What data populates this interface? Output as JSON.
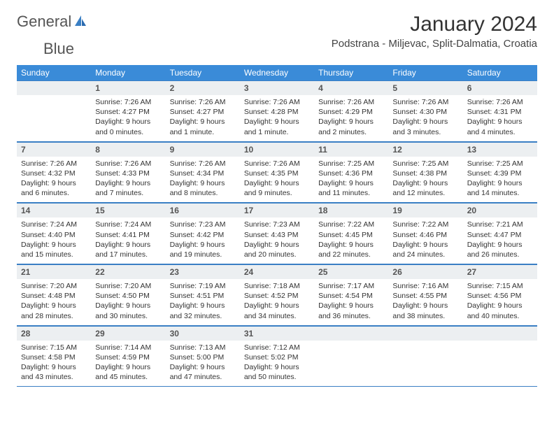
{
  "brand": {
    "word1": "General",
    "word2": "Blue"
  },
  "title": "January 2024",
  "subtitle": "Podstrana - Miljevac, Split-Dalmatia, Croatia",
  "colors": {
    "header_bg": "#3a8bd8",
    "header_fg": "#ffffff",
    "daynum_bg": "#eceff1",
    "text": "#333333",
    "rule": "#3a7fc4",
    "brand_blue": "#3a7fc4",
    "brand_grey": "#555555"
  },
  "weekdays": [
    "Sunday",
    "Monday",
    "Tuesday",
    "Wednesday",
    "Thursday",
    "Friday",
    "Saturday"
  ],
  "weeks": [
    [
      {
        "num": "",
        "lines": [
          "",
          "",
          "",
          ""
        ]
      },
      {
        "num": "1",
        "lines": [
          "Sunrise: 7:26 AM",
          "Sunset: 4:27 PM",
          "Daylight: 9 hours",
          "and 0 minutes."
        ]
      },
      {
        "num": "2",
        "lines": [
          "Sunrise: 7:26 AM",
          "Sunset: 4:27 PM",
          "Daylight: 9 hours",
          "and 1 minute."
        ]
      },
      {
        "num": "3",
        "lines": [
          "Sunrise: 7:26 AM",
          "Sunset: 4:28 PM",
          "Daylight: 9 hours",
          "and 1 minute."
        ]
      },
      {
        "num": "4",
        "lines": [
          "Sunrise: 7:26 AM",
          "Sunset: 4:29 PM",
          "Daylight: 9 hours",
          "and 2 minutes."
        ]
      },
      {
        "num": "5",
        "lines": [
          "Sunrise: 7:26 AM",
          "Sunset: 4:30 PM",
          "Daylight: 9 hours",
          "and 3 minutes."
        ]
      },
      {
        "num": "6",
        "lines": [
          "Sunrise: 7:26 AM",
          "Sunset: 4:31 PM",
          "Daylight: 9 hours",
          "and 4 minutes."
        ]
      }
    ],
    [
      {
        "num": "7",
        "lines": [
          "Sunrise: 7:26 AM",
          "Sunset: 4:32 PM",
          "Daylight: 9 hours",
          "and 6 minutes."
        ]
      },
      {
        "num": "8",
        "lines": [
          "Sunrise: 7:26 AM",
          "Sunset: 4:33 PM",
          "Daylight: 9 hours",
          "and 7 minutes."
        ]
      },
      {
        "num": "9",
        "lines": [
          "Sunrise: 7:26 AM",
          "Sunset: 4:34 PM",
          "Daylight: 9 hours",
          "and 8 minutes."
        ]
      },
      {
        "num": "10",
        "lines": [
          "Sunrise: 7:26 AM",
          "Sunset: 4:35 PM",
          "Daylight: 9 hours",
          "and 9 minutes."
        ]
      },
      {
        "num": "11",
        "lines": [
          "Sunrise: 7:25 AM",
          "Sunset: 4:36 PM",
          "Daylight: 9 hours",
          "and 11 minutes."
        ]
      },
      {
        "num": "12",
        "lines": [
          "Sunrise: 7:25 AM",
          "Sunset: 4:38 PM",
          "Daylight: 9 hours",
          "and 12 minutes."
        ]
      },
      {
        "num": "13",
        "lines": [
          "Sunrise: 7:25 AM",
          "Sunset: 4:39 PM",
          "Daylight: 9 hours",
          "and 14 minutes."
        ]
      }
    ],
    [
      {
        "num": "14",
        "lines": [
          "Sunrise: 7:24 AM",
          "Sunset: 4:40 PM",
          "Daylight: 9 hours",
          "and 15 minutes."
        ]
      },
      {
        "num": "15",
        "lines": [
          "Sunrise: 7:24 AM",
          "Sunset: 4:41 PM",
          "Daylight: 9 hours",
          "and 17 minutes."
        ]
      },
      {
        "num": "16",
        "lines": [
          "Sunrise: 7:23 AM",
          "Sunset: 4:42 PM",
          "Daylight: 9 hours",
          "and 19 minutes."
        ]
      },
      {
        "num": "17",
        "lines": [
          "Sunrise: 7:23 AM",
          "Sunset: 4:43 PM",
          "Daylight: 9 hours",
          "and 20 minutes."
        ]
      },
      {
        "num": "18",
        "lines": [
          "Sunrise: 7:22 AM",
          "Sunset: 4:45 PM",
          "Daylight: 9 hours",
          "and 22 minutes."
        ]
      },
      {
        "num": "19",
        "lines": [
          "Sunrise: 7:22 AM",
          "Sunset: 4:46 PM",
          "Daylight: 9 hours",
          "and 24 minutes."
        ]
      },
      {
        "num": "20",
        "lines": [
          "Sunrise: 7:21 AM",
          "Sunset: 4:47 PM",
          "Daylight: 9 hours",
          "and 26 minutes."
        ]
      }
    ],
    [
      {
        "num": "21",
        "lines": [
          "Sunrise: 7:20 AM",
          "Sunset: 4:48 PM",
          "Daylight: 9 hours",
          "and 28 minutes."
        ]
      },
      {
        "num": "22",
        "lines": [
          "Sunrise: 7:20 AM",
          "Sunset: 4:50 PM",
          "Daylight: 9 hours",
          "and 30 minutes."
        ]
      },
      {
        "num": "23",
        "lines": [
          "Sunrise: 7:19 AM",
          "Sunset: 4:51 PM",
          "Daylight: 9 hours",
          "and 32 minutes."
        ]
      },
      {
        "num": "24",
        "lines": [
          "Sunrise: 7:18 AM",
          "Sunset: 4:52 PM",
          "Daylight: 9 hours",
          "and 34 minutes."
        ]
      },
      {
        "num": "25",
        "lines": [
          "Sunrise: 7:17 AM",
          "Sunset: 4:54 PM",
          "Daylight: 9 hours",
          "and 36 minutes."
        ]
      },
      {
        "num": "26",
        "lines": [
          "Sunrise: 7:16 AM",
          "Sunset: 4:55 PM",
          "Daylight: 9 hours",
          "and 38 minutes."
        ]
      },
      {
        "num": "27",
        "lines": [
          "Sunrise: 7:15 AM",
          "Sunset: 4:56 PM",
          "Daylight: 9 hours",
          "and 40 minutes."
        ]
      }
    ],
    [
      {
        "num": "28",
        "lines": [
          "Sunrise: 7:15 AM",
          "Sunset: 4:58 PM",
          "Daylight: 9 hours",
          "and 43 minutes."
        ]
      },
      {
        "num": "29",
        "lines": [
          "Sunrise: 7:14 AM",
          "Sunset: 4:59 PM",
          "Daylight: 9 hours",
          "and 45 minutes."
        ]
      },
      {
        "num": "30",
        "lines": [
          "Sunrise: 7:13 AM",
          "Sunset: 5:00 PM",
          "Daylight: 9 hours",
          "and 47 minutes."
        ]
      },
      {
        "num": "31",
        "lines": [
          "Sunrise: 7:12 AM",
          "Sunset: 5:02 PM",
          "Daylight: 9 hours",
          "and 50 minutes."
        ]
      },
      {
        "num": "",
        "lines": [
          "",
          "",
          "",
          ""
        ]
      },
      {
        "num": "",
        "lines": [
          "",
          "",
          "",
          ""
        ]
      },
      {
        "num": "",
        "lines": [
          "",
          "",
          "",
          ""
        ]
      }
    ]
  ]
}
